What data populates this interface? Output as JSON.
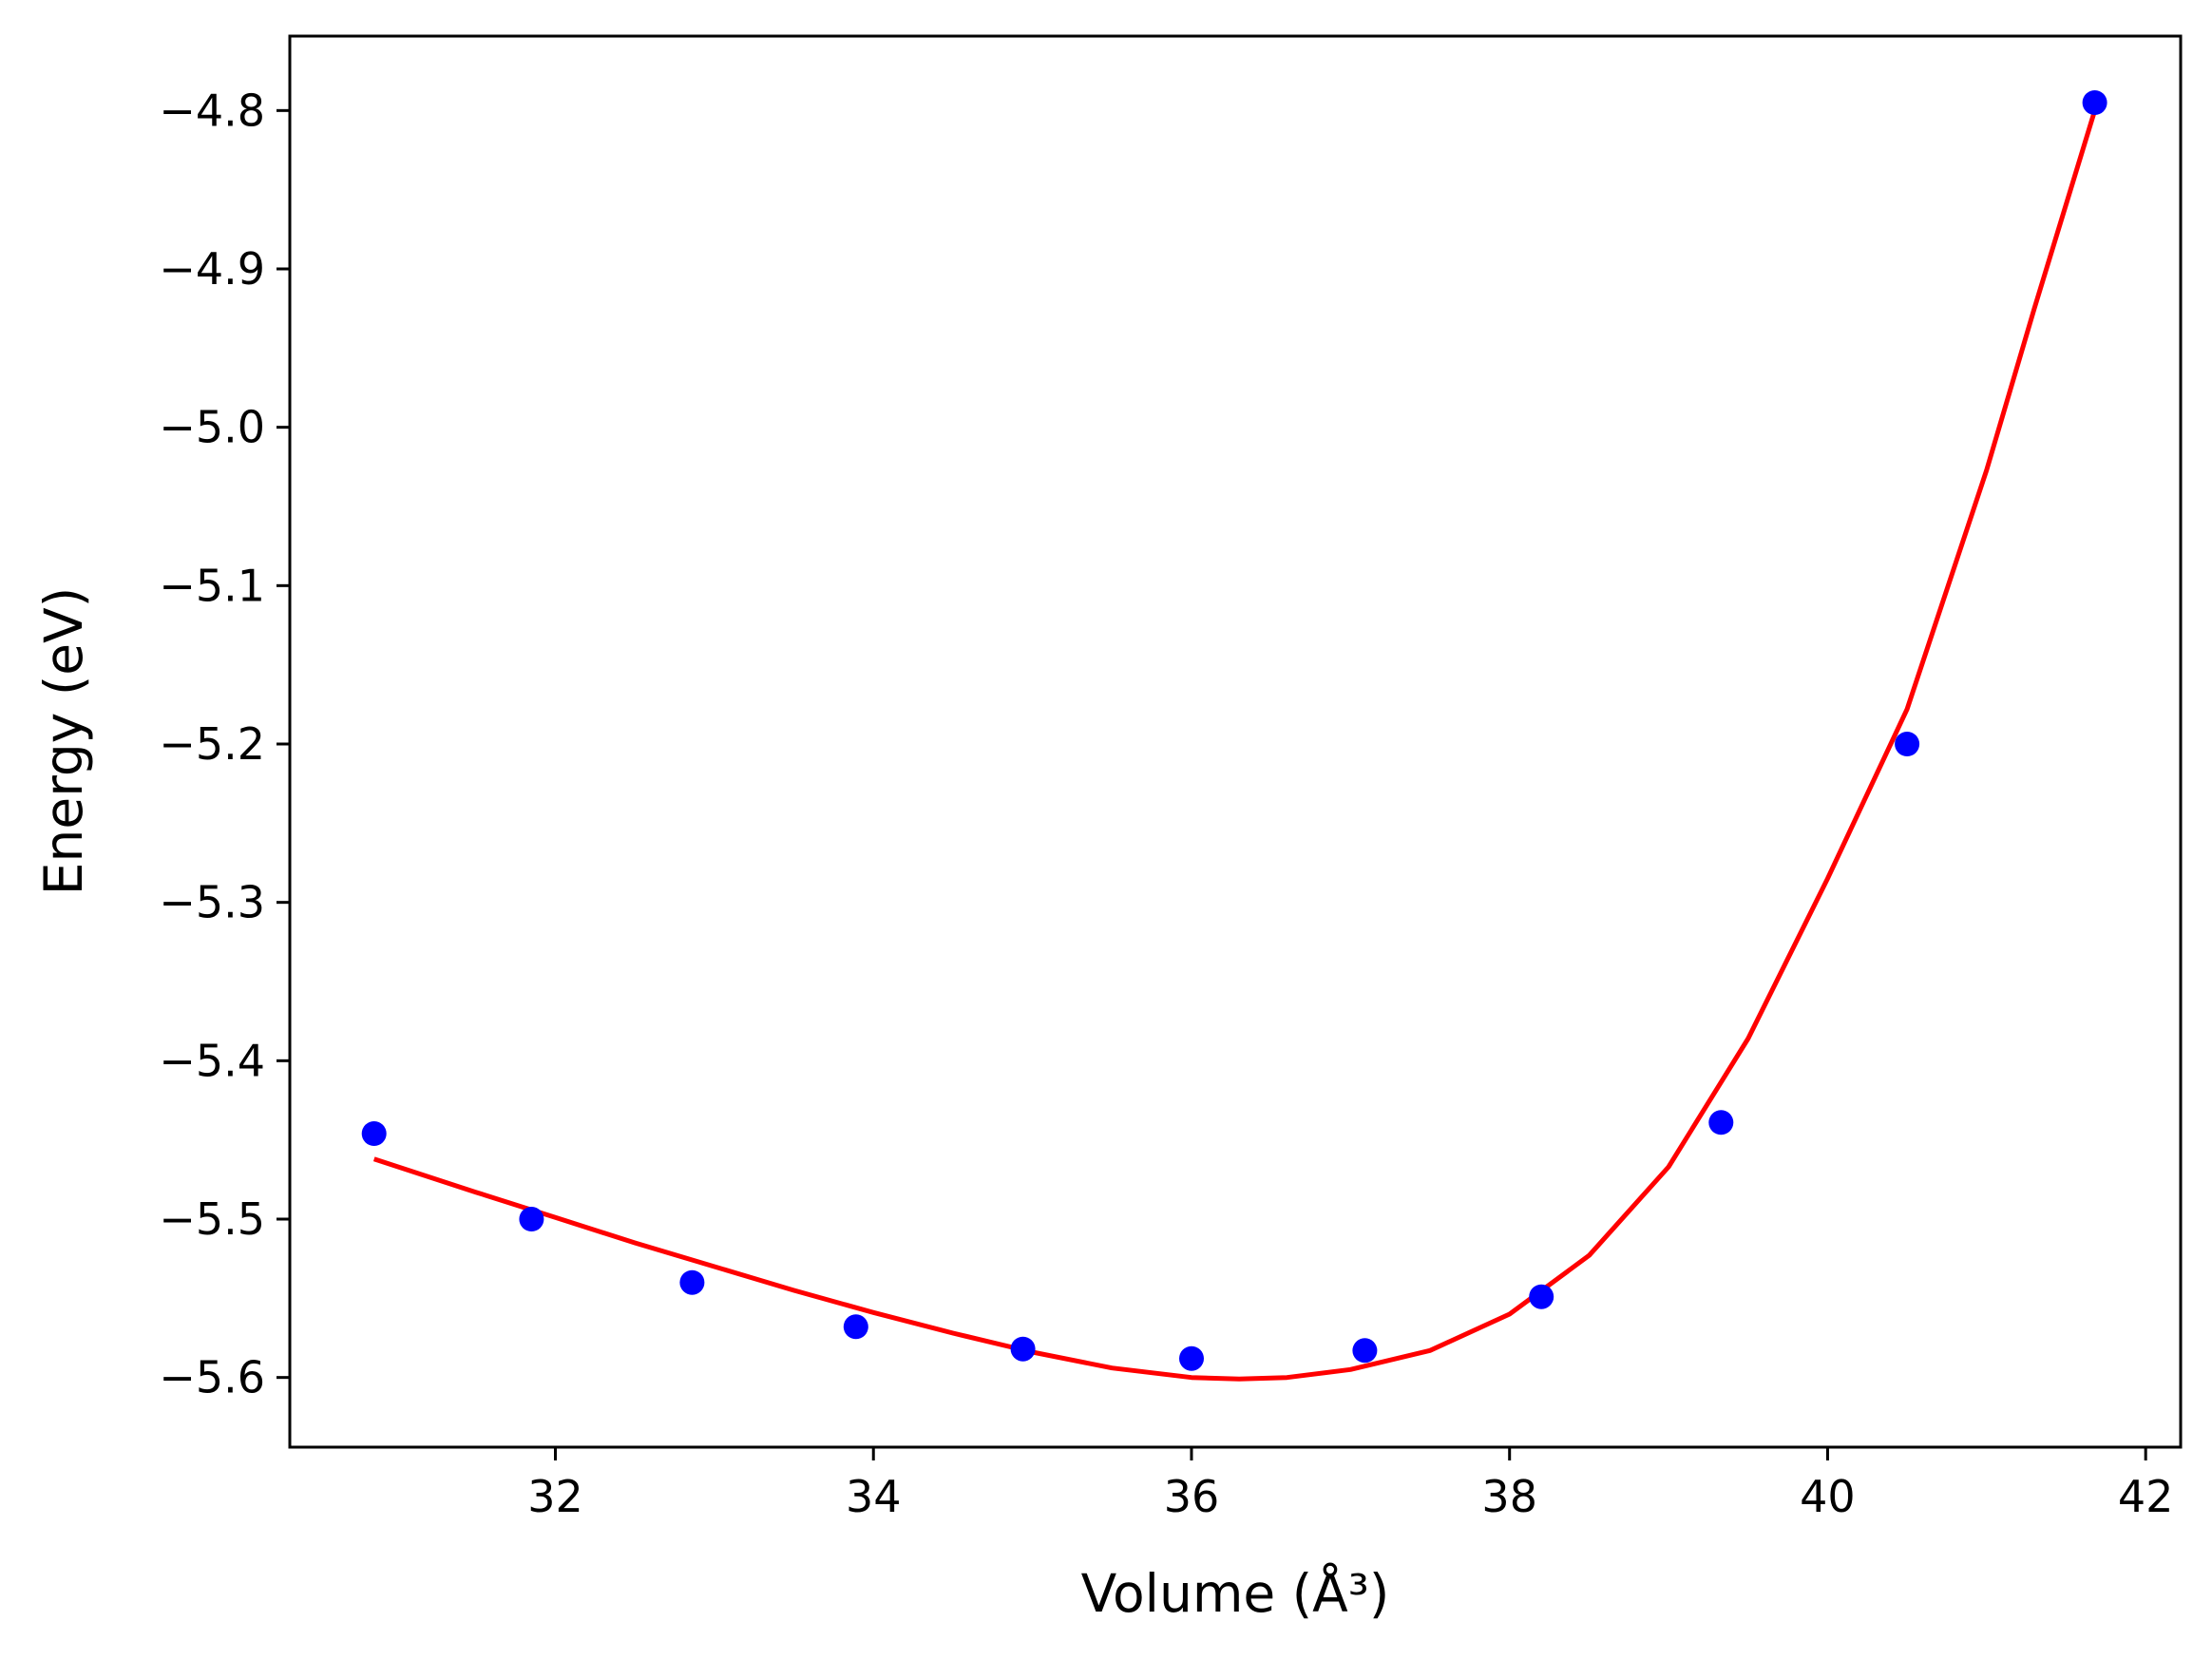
{
  "chart_data": {
    "type": "scatter",
    "xlabel": "Volume (Å³)",
    "ylabel": "Energy (eV)",
    "xlim": [
      30.33,
      42.22
    ],
    "ylim": [
      -5.644,
      -4.753
    ],
    "xticks": [
      {
        "value": 32,
        "label": "32"
      },
      {
        "value": 34,
        "label": "34"
      },
      {
        "value": 36,
        "label": "36"
      },
      {
        "value": 38,
        "label": "38"
      },
      {
        "value": 40,
        "label": "40"
      },
      {
        "value": 42,
        "label": "42"
      }
    ],
    "yticks": [
      {
        "value": -4.8,
        "label": "−4.8"
      },
      {
        "value": -4.9,
        "label": "−4.9"
      },
      {
        "value": -5.0,
        "label": "−5.0"
      },
      {
        "value": -5.1,
        "label": "−5.1"
      },
      {
        "value": -5.2,
        "label": "−5.2"
      },
      {
        "value": -5.3,
        "label": "−5.3"
      },
      {
        "value": -5.4,
        "label": "−5.4"
      },
      {
        "value": -5.5,
        "label": "−5.5"
      },
      {
        "value": -5.6,
        "label": "−5.6"
      }
    ],
    "grid": false,
    "legend": "none",
    "series": [
      {
        "kind": "points",
        "color": "#0000ff",
        "x": [
          30.86,
          31.85,
          32.86,
          33.89,
          34.94,
          36.0,
          37.09,
          38.2,
          39.33,
          40.5,
          41.68
        ],
        "y": [
          -5.446,
          -5.5,
          -5.54,
          -5.568,
          -5.582,
          -5.588,
          -5.583,
          -5.549,
          -5.439,
          -5.2,
          -4.795
        ]
      },
      {
        "kind": "fit-line",
        "color": "#ff0000",
        "x": [
          30.86,
          31.5,
          32.0,
          32.5,
          33.0,
          33.5,
          34.0,
          34.5,
          35.0,
          35.5,
          36.0,
          36.3,
          36.6,
          37.0,
          37.5,
          38.0,
          38.5,
          39.0,
          39.5,
          40.0,
          40.5,
          41.0,
          41.3,
          41.68
        ],
        "y": [
          -5.462,
          -5.483,
          -5.499,
          -5.515,
          -5.53,
          -5.545,
          -5.559,
          -5.572,
          -5.584,
          -5.594,
          -5.6,
          -5.601,
          -5.6,
          -5.595,
          -5.583,
          -5.56,
          -5.523,
          -5.467,
          -5.386,
          -5.285,
          -5.178,
          -5.027,
          -4.925,
          -4.8
        ]
      }
    ]
  }
}
